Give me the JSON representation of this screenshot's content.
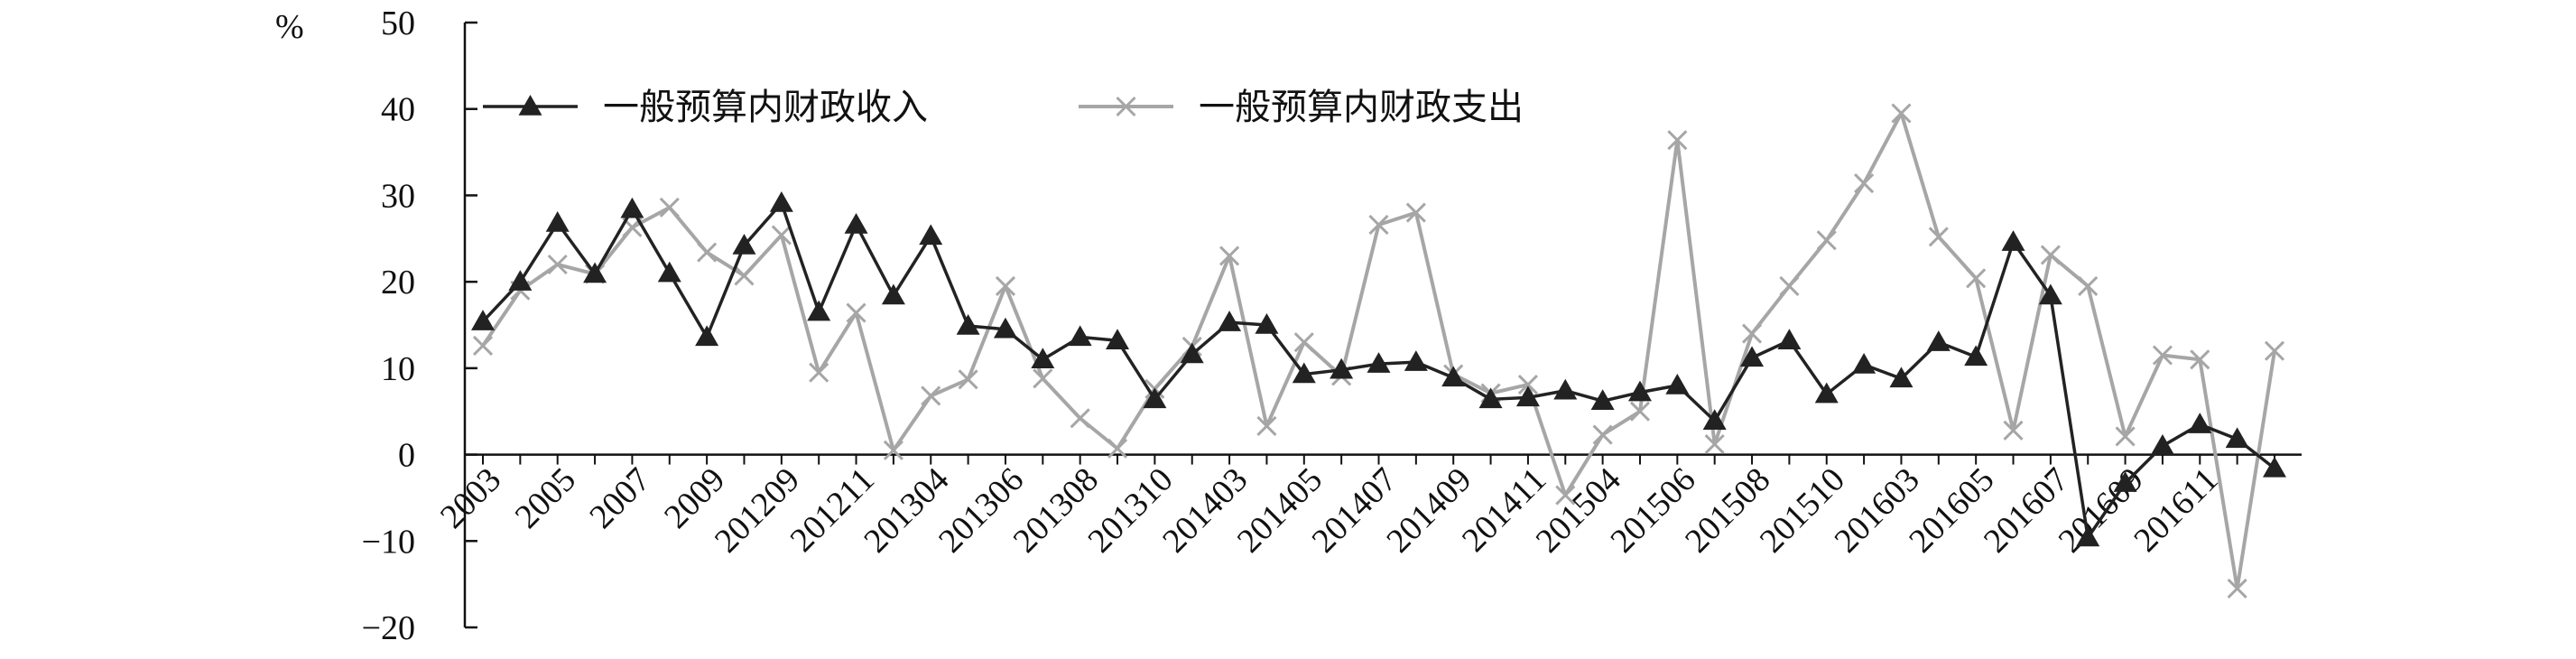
{
  "chart_data": {
    "type": "line",
    "unit_label": "%",
    "ylim": [
      -20,
      50
    ],
    "yticks": [
      -20,
      -10,
      0,
      10,
      20,
      30,
      40,
      50
    ],
    "x_tick_labels": [
      "2003",
      "2005",
      "2007",
      "2009",
      "201209",
      "201211",
      "201304",
      "201306",
      "201308",
      "201310",
      "201403",
      "201405",
      "201407",
      "201409",
      "201411",
      "201504",
      "201506",
      "201508",
      "201510",
      "201603",
      "201605",
      "201607",
      "201609",
      "201611"
    ],
    "legend_position": "top-left",
    "grid": false,
    "series": [
      {
        "name": "一般预算内财政收入",
        "marker": "triangle",
        "color": "#222222",
        "values": [
          15.4,
          20.0,
          26.8,
          20.9,
          28.4,
          21.0,
          13.6,
          24.2,
          29.1,
          16.5,
          26.6,
          18.4,
          25.3,
          14.9,
          14.5,
          11.0,
          13.6,
          13.2,
          6.4,
          11.6,
          15.3,
          15.0,
          9.3,
          9.8,
          10.5,
          10.7,
          8.9,
          6.4,
          6.6,
          7.4,
          6.2,
          7.2,
          8.0,
          3.9,
          11.2,
          13.2,
          7.0,
          10.4,
          8.8,
          13.0,
          11.3,
          24.6,
          18.4,
          -9.6,
          -3.3,
          1.0,
          3.5,
          1.8,
          -1.6
        ]
      },
      {
        "name": "一般预算内财政支出",
        "marker": "x",
        "color": "#a6a6a6",
        "values": [
          12.6,
          19.0,
          22.0,
          20.9,
          26.3,
          28.6,
          23.4,
          20.7,
          25.4,
          9.5,
          16.4,
          0.5,
          6.8,
          8.7,
          19.5,
          8.8,
          4.2,
          0.7,
          7.6,
          12.5,
          23.0,
          3.3,
          13.0,
          9.1,
          26.6,
          28.0,
          9.3,
          7.1,
          8.1,
          -4.7,
          2.3,
          5.0,
          36.4,
          1.2,
          14.0,
          19.5,
          24.8,
          31.4,
          39.5,
          25.2,
          20.4,
          2.8,
          23.1,
          19.5,
          2.1,
          11.5,
          11.0,
          -15.5,
          12.0
        ]
      }
    ]
  }
}
